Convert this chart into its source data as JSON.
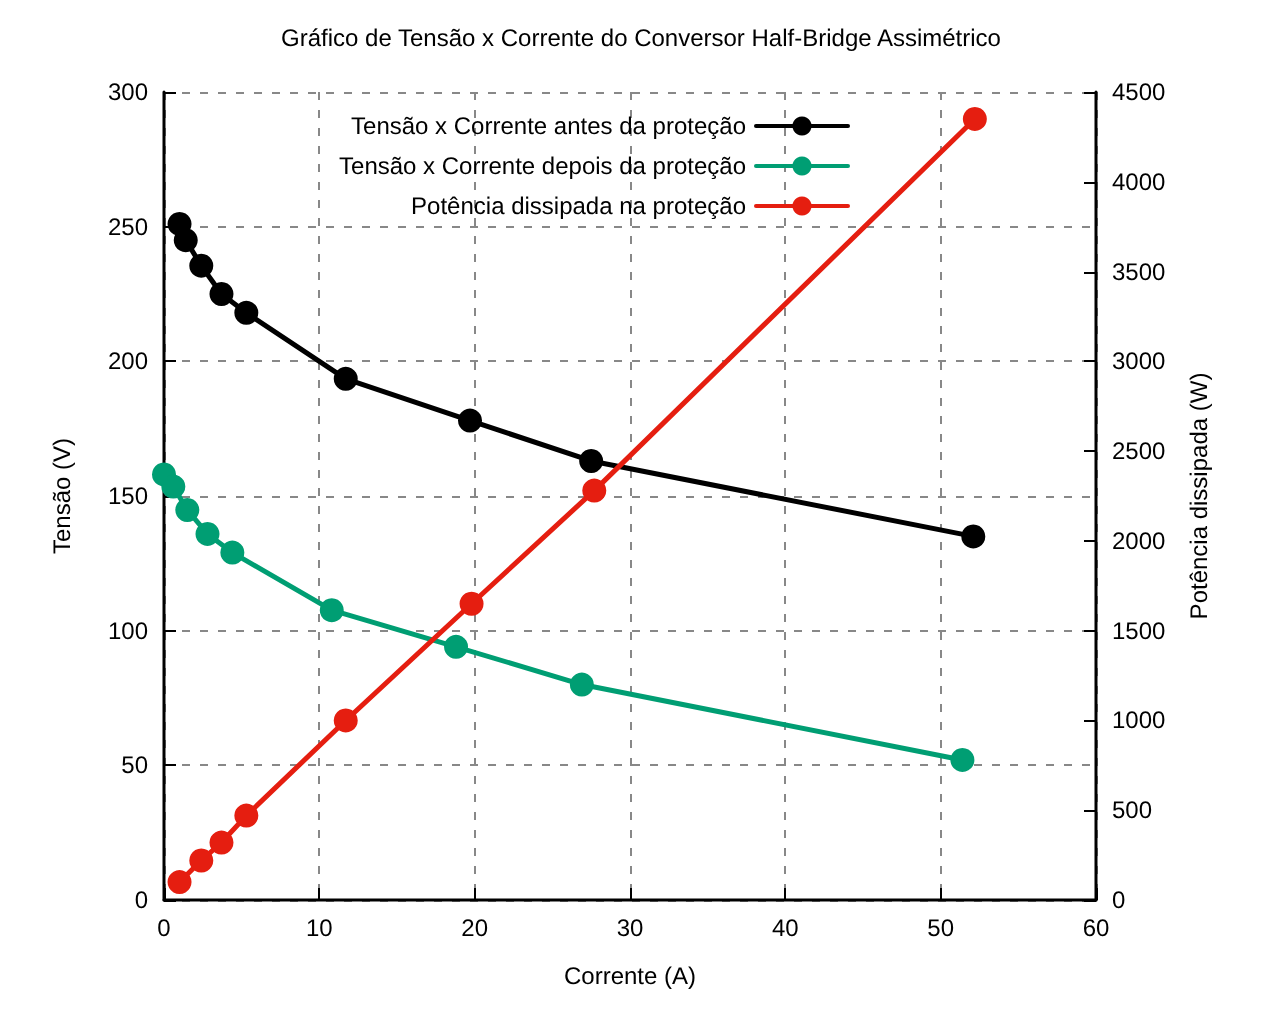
{
  "chart_data": {
    "type": "line",
    "title": "Gráfico de Tensão x Corrente do Conversor Half-Bridge Assimétrico",
    "xlabel": "Corrente (A)",
    "ylabel": "Tensão (V)",
    "y2label": "Potência dissipada (W)",
    "series": [
      {
        "name": "Tensão x Corrente antes da proteção",
        "color": "#000000",
        "x": [
          1.0,
          1.4,
          2.4,
          3.7,
          5.3,
          11.7,
          19.7,
          27.5,
          52.1
        ],
        "values": [
          251,
          245,
          235.5,
          225,
          218,
          193.5,
          178,
          163,
          135
        ]
      },
      {
        "name": "Tensão x Corrente depois da proteção",
        "color": "#009e73",
        "x": [
          0,
          0.6,
          1.5,
          2.8,
          4.4,
          10.8,
          18.8,
          26.9,
          51.4
        ],
        "values": [
          158,
          153.5,
          144.8,
          135.9,
          129,
          107.6,
          94,
          80,
          52
        ]
      },
      {
        "name": "Potência dissipada na proteção",
        "color": "#e51e10",
        "axis": "y2",
        "x": [
          1.0,
          2.4,
          3.7,
          5.3,
          11.7,
          19.8,
          27.7,
          52.2
        ],
        "values": [
          100,
          220,
          320,
          470,
          1000,
          1650,
          2280,
          4350
        ]
      }
    ],
    "xlim": [
      0,
      60
    ],
    "xticks": [
      0,
      10,
      20,
      30,
      40,
      50,
      60
    ],
    "ylim": [
      0,
      300
    ],
    "yticks": [
      0,
      50,
      100,
      150,
      200,
      250,
      300
    ],
    "y2lim": [
      0,
      4500
    ],
    "y2ticks": [
      0,
      500,
      1000,
      1500,
      2000,
      2500,
      3000,
      3500,
      4000,
      4500
    ],
    "grid": true,
    "legend": "top right",
    "marker": "circle",
    "line_style": "solid"
  }
}
